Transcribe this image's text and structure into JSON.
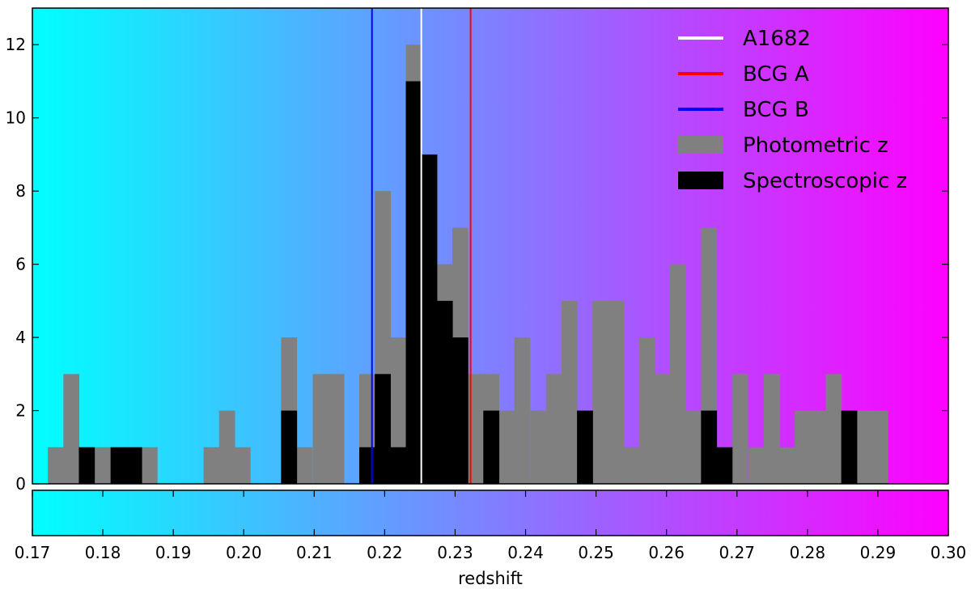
{
  "chart_data": {
    "type": "bar",
    "xlabel": "redshift",
    "ylabel": "",
    "xlim": [
      0.17,
      0.3
    ],
    "ylim": [
      0,
      13
    ],
    "bin_width": 0.0022,
    "x_ticks": [
      "0.17",
      "0.18",
      "0.19",
      "0.20",
      "0.21",
      "0.22",
      "0.23",
      "0.24",
      "0.25",
      "0.26",
      "0.27",
      "0.28",
      "0.29",
      "0.30"
    ],
    "y_ticks": [
      "0",
      "2",
      "4",
      "6",
      "8",
      "10",
      "12"
    ],
    "gradient": {
      "start_color": "#00ffff",
      "end_color": "#ff00ff"
    },
    "legend_position": "top-right",
    "legend": [
      {
        "label": "A1682",
        "color": "#ffffff",
        "kind": "line"
      },
      {
        "label": "BCG A",
        "color": "#ff0000",
        "kind": "line"
      },
      {
        "label": "BCG B",
        "color": "#0000ff",
        "kind": "line"
      },
      {
        "label": "Photometric z",
        "color": "#808080",
        "kind": "patch"
      },
      {
        "label": "Spectroscopic z",
        "color": "#000000",
        "kind": "patch"
      }
    ],
    "vlines": [
      {
        "label": "A1682",
        "x": 0.2252,
        "color": "#ffffff"
      },
      {
        "label": "BCG A",
        "x": 0.2322,
        "color": "#ff0000"
      },
      {
        "label": "BCG B",
        "x": 0.2182,
        "color": "#0000ff"
      }
    ],
    "series": [
      {
        "name": "Photometric z",
        "color": "#808080",
        "bin_starts": [
          0.1722,
          0.1744,
          0.1766,
          0.1789,
          0.1811,
          0.1833,
          0.1855,
          0.1943,
          0.1965,
          0.1987,
          0.2053,
          0.2075,
          0.2098,
          0.212,
          0.2164,
          0.2186,
          0.2208,
          0.223,
          0.2252,
          0.2274,
          0.2296,
          0.2318,
          0.234,
          0.2362,
          0.2384,
          0.2407,
          0.2429,
          0.2451,
          0.2473,
          0.2495,
          0.2517,
          0.2539,
          0.2561,
          0.2583,
          0.2605,
          0.2627,
          0.2649,
          0.2671,
          0.2693,
          0.2716,
          0.2738,
          0.276,
          0.2782,
          0.2804,
          0.2826,
          0.2848,
          0.287,
          0.2892
        ],
        "values": [
          1,
          3,
          1,
          1,
          1,
          1,
          1,
          1,
          2,
          1,
          4,
          1,
          3,
          3,
          3,
          8,
          4,
          12,
          9,
          6,
          7,
          3,
          3,
          2,
          4,
          2,
          3,
          5,
          2,
          5,
          5,
          1,
          4,
          3,
          6,
          2,
          7,
          1,
          3,
          1,
          3,
          1,
          2,
          2,
          3,
          1,
          2,
          2
        ]
      },
      {
        "name": "Spectroscopic z",
        "color": "#000000",
        "bin_starts": [
          0.1766,
          0.1811,
          0.1833,
          0.2053,
          0.2164,
          0.2186,
          0.2208,
          0.223,
          0.2252,
          0.2274,
          0.2296,
          0.234,
          0.2473,
          0.2649,
          0.2671,
          0.2848
        ],
        "values": [
          1,
          1,
          1,
          2,
          1,
          3,
          1,
          11,
          9,
          5,
          4,
          2,
          2,
          2,
          1,
          2
        ]
      }
    ]
  }
}
